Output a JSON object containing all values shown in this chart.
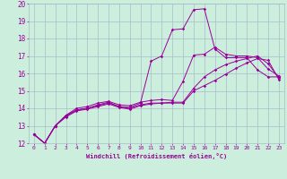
{
  "title": "",
  "xlabel": "Windchill (Refroidissement éolien,°C)",
  "background_color": "#cceedd",
  "grid_color": "#aabbcc",
  "line_color": "#990099",
  "xlim": [
    -0.5,
    23.5
  ],
  "ylim": [
    12,
    20
  ],
  "yticks": [
    12,
    13,
    14,
    15,
    16,
    17,
    18,
    19,
    20
  ],
  "xticks": [
    0,
    1,
    2,
    3,
    4,
    5,
    6,
    7,
    8,
    9,
    10,
    11,
    12,
    13,
    14,
    15,
    16,
    17,
    18,
    19,
    20,
    21,
    22,
    23
  ],
  "line1_x": [
    0,
    1,
    2,
    3,
    4,
    5,
    6,
    7,
    8,
    9,
    10,
    11,
    12,
    13,
    14,
    15,
    16,
    17,
    18,
    19,
    20,
    21,
    22,
    23
  ],
  "line1_y": [
    12.5,
    12.0,
    13.0,
    13.6,
    13.9,
    14.0,
    14.2,
    14.35,
    14.1,
    14.05,
    14.3,
    16.7,
    17.0,
    18.5,
    18.55,
    19.65,
    19.7,
    17.4,
    16.9,
    16.9,
    16.9,
    16.2,
    15.8,
    15.8
  ],
  "line2_x": [
    0,
    1,
    2,
    3,
    4,
    5,
    6,
    7,
    8,
    9,
    10,
    11,
    12,
    13,
    14,
    15,
    16,
    17,
    18,
    19,
    20,
    21,
    22,
    23
  ],
  "line2_y": [
    12.5,
    12.0,
    13.0,
    13.6,
    14.0,
    14.1,
    14.3,
    14.4,
    14.2,
    14.15,
    14.35,
    14.45,
    14.5,
    14.45,
    15.55,
    17.05,
    17.1,
    17.5,
    17.1,
    17.0,
    17.0,
    16.9,
    16.25,
    15.85
  ],
  "line3_x": [
    0,
    1,
    2,
    3,
    4,
    5,
    6,
    7,
    8,
    9,
    10,
    11,
    12,
    13,
    14,
    15,
    16,
    17,
    18,
    19,
    20,
    21,
    22,
    23
  ],
  "line3_y": [
    12.5,
    12.0,
    13.0,
    13.55,
    13.9,
    14.0,
    14.15,
    14.3,
    14.1,
    14.0,
    14.2,
    14.3,
    14.3,
    14.35,
    14.35,
    15.15,
    15.8,
    16.2,
    16.5,
    16.7,
    16.85,
    17.0,
    16.55,
    15.75
  ],
  "line4_x": [
    0,
    1,
    2,
    3,
    4,
    5,
    6,
    7,
    8,
    9,
    10,
    11,
    12,
    13,
    14,
    15,
    16,
    17,
    18,
    19,
    20,
    21,
    22,
    23
  ],
  "line4_y": [
    12.5,
    12.0,
    13.0,
    13.5,
    13.85,
    13.95,
    14.1,
    14.25,
    14.05,
    13.95,
    14.15,
    14.25,
    14.3,
    14.3,
    14.3,
    15.0,
    15.3,
    15.6,
    15.95,
    16.3,
    16.6,
    16.85,
    16.75,
    15.65
  ]
}
